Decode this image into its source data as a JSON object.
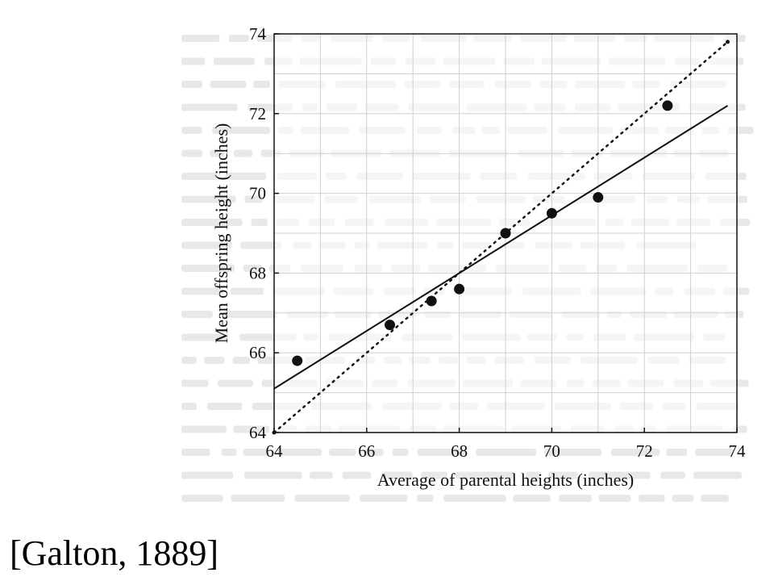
{
  "chart_data": {
    "type": "scatter",
    "title": "",
    "xlabel": "Average of parental heights (inches)",
    "ylabel": "Mean offspring height (inches)",
    "xlim": [
      64,
      74
    ],
    "ylim": [
      64,
      74
    ],
    "x_ticks": [
      64,
      66,
      68,
      70,
      72,
      74
    ],
    "y_ticks": [
      64,
      66,
      68,
      70,
      72,
      74
    ],
    "grid": true,
    "points": [
      {
        "x": 64.5,
        "y": 65.8
      },
      {
        "x": 66.5,
        "y": 66.7
      },
      {
        "x": 67.4,
        "y": 67.3
      },
      {
        "x": 68.0,
        "y": 67.6
      },
      {
        "x": 69.0,
        "y": 69.0
      },
      {
        "x": 70.0,
        "y": 69.5
      },
      {
        "x": 71.0,
        "y": 69.9
      },
      {
        "x": 72.5,
        "y": 72.2
      }
    ],
    "fit_line": {
      "x": [
        64,
        73.8
      ],
      "y": [
        65.1,
        72.2
      ],
      "style": "solid"
    },
    "identity_line": {
      "x": [
        64,
        73.8
      ],
      "y": [
        64,
        73.8
      ],
      "style": "dotted"
    }
  },
  "caption": "[Galton, 1889]",
  "colors": {
    "ink": "#111111",
    "grid": "#cfcfcf",
    "background_text": "#bdbdbd"
  }
}
